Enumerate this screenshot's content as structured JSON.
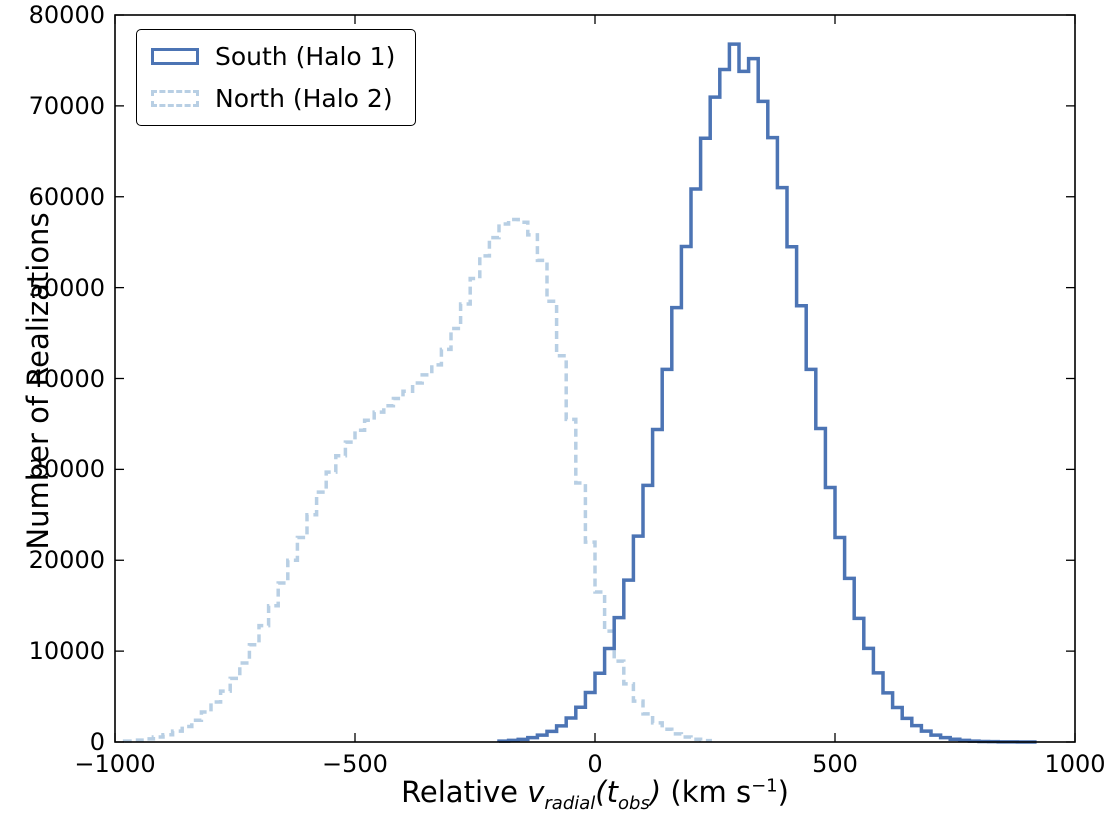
{
  "figure": {
    "background": "#ffffff",
    "axis_color": "#000000"
  },
  "chart_data": {
    "type": "line",
    "subtype": "step-histogram",
    "title": "",
    "ylabel": "Number of Realizations",
    "xlabel": {
      "text_prefix": "Relative ",
      "var1": "v",
      "var1_sub": "radial",
      "open_paren": "(",
      "var2": "t",
      "var2_sub": "obs",
      "close_paren": ")",
      "unit_open": " (km s",
      "unit_exp": "−1",
      "unit_close": ")"
    },
    "xlim": [
      -1000,
      1000
    ],
    "ylim": [
      0,
      80000
    ],
    "grid": false,
    "legend_position": "upper-left",
    "xticks": {
      "values": [
        -1000,
        -500,
        0,
        500,
        1000
      ],
      "labels": [
        "−1000",
        "−500",
        "0",
        "500",
        "1000"
      ]
    },
    "yticks": {
      "values": [
        0,
        10000,
        20000,
        30000,
        40000,
        50000,
        60000,
        70000,
        80000
      ],
      "labels": [
        "0",
        "10000",
        "20000",
        "30000",
        "40000",
        "50000",
        "60000",
        "70000",
        "80000"
      ]
    },
    "series": [
      {
        "name": "South (Halo 1)",
        "style": "solid",
        "color": "#4c74b4",
        "line_width": 3.5,
        "bin_width": 20,
        "x_start": -200,
        "values": [
          100,
          175,
          290,
          475,
          755,
          1170,
          1780,
          2640,
          3820,
          5440,
          7560,
          10290,
          13680,
          17810,
          22660,
          28240,
          34390,
          41000,
          47800,
          54530,
          60850,
          66440,
          70960,
          74000,
          76800,
          73800,
          75200,
          70500,
          66500,
          61000,
          54500,
          48000,
          41000,
          34500,
          28000,
          22500,
          18000,
          13600,
          10300,
          7600,
          5400,
          3800,
          2600,
          1800,
          1200,
          750,
          480,
          300,
          180,
          100,
          60,
          35,
          20,
          10,
          5,
          0
        ]
      },
      {
        "name": "North (Halo 2)",
        "style": "dashed",
        "color": "#b8cfe4",
        "line_width": 3.5,
        "bin_width": 20,
        "x_start": -980,
        "values": [
          100,
          200,
          350,
          550,
          800,
          1200,
          1700,
          2400,
          3300,
          4400,
          5600,
          7000,
          8700,
          10700,
          12800,
          15000,
          17500,
          20000,
          22500,
          25000,
          27500,
          29700,
          31500,
          33000,
          34300,
          35400,
          36300,
          37000,
          37800,
          38600,
          39500,
          40400,
          41500,
          43200,
          45500,
          48200,
          51000,
          53500,
          55500,
          57000,
          57500,
          57200,
          55800,
          53000,
          48500,
          42500,
          35500,
          28500,
          22000,
          16500,
          12200,
          8900,
          6400,
          4500,
          3100,
          2100,
          1400,
          900,
          550,
          300,
          150
        ]
      }
    ]
  }
}
